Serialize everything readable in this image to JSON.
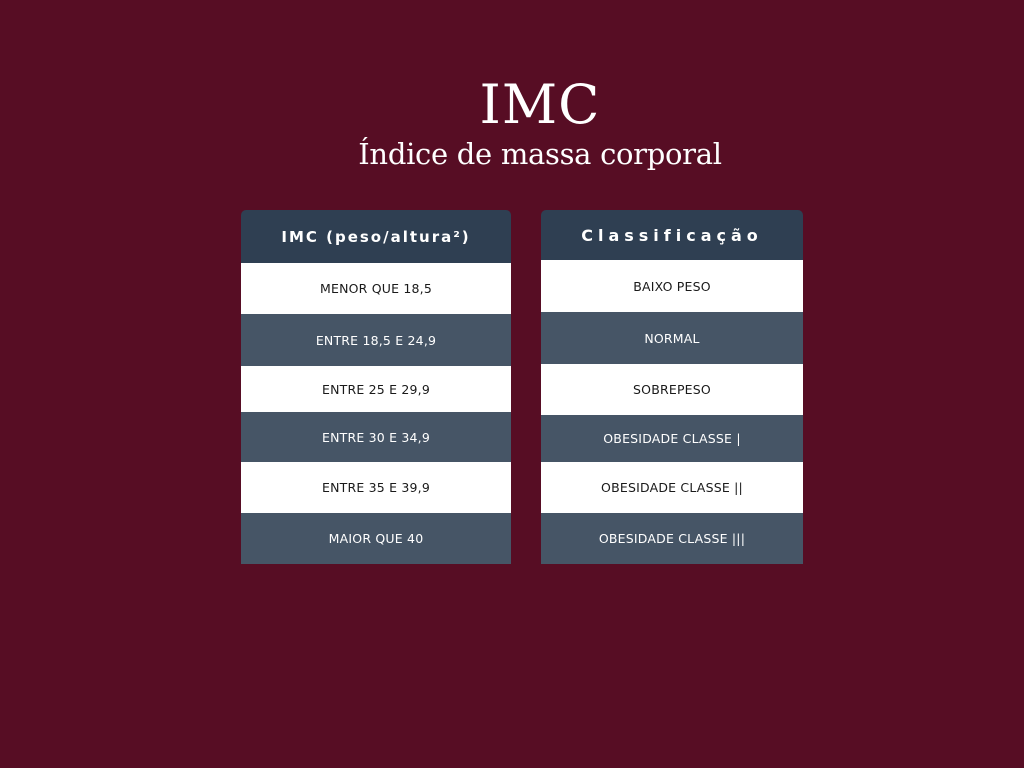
{
  "title": "IMC",
  "subtitle": "Índice de massa corporal",
  "colors": {
    "background": "#570d24",
    "header": "#2f3f52",
    "row_dark": "#465566",
    "row_light": "#ffffff"
  },
  "imc_table": {
    "header": "IMC (peso/altura²)",
    "rows": [
      "MENOR QUE 18,5",
      "ENTRE 18,5 E 24,9",
      "ENTRE 25 E 29,9",
      "ENTRE 30 E 34,9",
      "ENTRE 35 E 39,9",
      "MAIOR QUE 40"
    ]
  },
  "class_table": {
    "header": "Classificação",
    "rows": [
      "BAIXO PESO",
      "NORMAL",
      "SOBREPESO",
      "OBESIDADE CLASSE |",
      "OBESIDADE CLASSE ||",
      "OBESIDADE CLASSE |||"
    ]
  }
}
